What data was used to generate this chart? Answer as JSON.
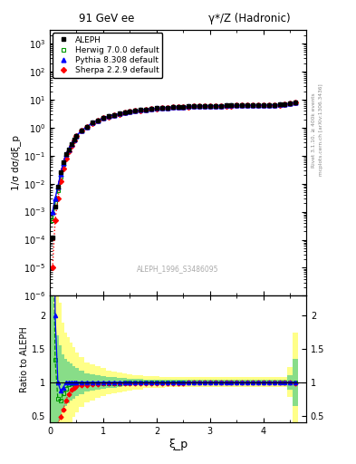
{
  "title_left": "91 GeV ee",
  "title_right": "γ*/Z (Hadronic)",
  "xlabel": "ξ_p",
  "ylabel_main": "1/σ dσ/dξ_p",
  "ylabel_ratio": "Ratio to ALEPH",
  "watermark": "ALEPH_1996_S3486095",
  "right_label": "Rivet 3.1.10, ≥ 400k events",
  "right_label2": "mcplots.cern.ch [arXiv:1306.3436]",
  "aleph_x": [
    0.05,
    0.1,
    0.15,
    0.2,
    0.25,
    0.3,
    0.35,
    0.4,
    0.45,
    0.5,
    0.6,
    0.7,
    0.8,
    0.9,
    1.0,
    1.1,
    1.2,
    1.3,
    1.4,
    1.5,
    1.6,
    1.7,
    1.8,
    1.9,
    2.0,
    2.1,
    2.2,
    2.3,
    2.4,
    2.5,
    2.6,
    2.7,
    2.8,
    2.9,
    3.0,
    3.1,
    3.2,
    3.3,
    3.4,
    3.5,
    3.6,
    3.7,
    3.8,
    3.9,
    4.0,
    4.1,
    4.2,
    4.3,
    4.4,
    4.5,
    4.6
  ],
  "aleph_y": [
    0.00012,
    0.0015,
    0.008,
    0.025,
    0.06,
    0.11,
    0.17,
    0.26,
    0.38,
    0.52,
    0.8,
    1.1,
    1.5,
    1.85,
    2.2,
    2.55,
    2.85,
    3.15,
    3.45,
    3.75,
    4.0,
    4.25,
    4.5,
    4.7,
    4.9,
    5.05,
    5.2,
    5.35,
    5.5,
    5.6,
    5.7,
    5.8,
    5.88,
    5.95,
    6.0,
    6.05,
    6.1,
    6.12,
    6.15,
    6.18,
    6.2,
    6.22,
    6.25,
    6.3,
    6.35,
    6.4,
    6.5,
    6.6,
    6.8,
    7.2,
    8.0
  ],
  "herwig_x": [
    0.05,
    0.1,
    0.15,
    0.2,
    0.25,
    0.3,
    0.35,
    0.4,
    0.45,
    0.5,
    0.6,
    0.7,
    0.8,
    0.9,
    1.0,
    1.1,
    1.2,
    1.3,
    1.4,
    1.5,
    1.6,
    1.7,
    1.8,
    1.9,
    2.0,
    2.1,
    2.2,
    2.3,
    2.4,
    2.5,
    2.6,
    2.7,
    2.8,
    2.9,
    3.0,
    3.1,
    3.2,
    3.3,
    3.4,
    3.5,
    3.6,
    3.7,
    3.8,
    3.9,
    4.0,
    4.1,
    4.2,
    4.3,
    4.4,
    4.5,
    4.6
  ],
  "herwig_y": [
    0.0005,
    0.002,
    0.006,
    0.018,
    0.05,
    0.1,
    0.165,
    0.255,
    0.37,
    0.51,
    0.79,
    1.08,
    1.48,
    1.82,
    2.18,
    2.52,
    2.82,
    3.12,
    3.42,
    3.72,
    3.97,
    4.22,
    4.47,
    4.67,
    4.87,
    5.02,
    5.17,
    5.32,
    5.47,
    5.57,
    5.67,
    5.77,
    5.85,
    5.92,
    5.97,
    6.02,
    6.07,
    6.09,
    6.12,
    6.15,
    6.17,
    6.19,
    6.22,
    6.27,
    6.32,
    6.37,
    6.47,
    6.57,
    6.77,
    7.17,
    8.0
  ],
  "pythia_x": [
    0.05,
    0.1,
    0.15,
    0.2,
    0.25,
    0.3,
    0.35,
    0.4,
    0.45,
    0.5,
    0.6,
    0.7,
    0.8,
    0.9,
    1.0,
    1.1,
    1.2,
    1.3,
    1.4,
    1.5,
    1.6,
    1.7,
    1.8,
    1.9,
    2.0,
    2.1,
    2.2,
    2.3,
    2.4,
    2.5,
    2.6,
    2.7,
    2.8,
    2.9,
    3.0,
    3.1,
    3.2,
    3.3,
    3.4,
    3.5,
    3.6,
    3.7,
    3.8,
    3.9,
    4.0,
    4.1,
    4.2,
    4.3,
    4.4,
    4.5,
    4.6
  ],
  "pythia_y": [
    0.001,
    0.003,
    0.008,
    0.022,
    0.055,
    0.11,
    0.17,
    0.26,
    0.38,
    0.52,
    0.8,
    1.1,
    1.5,
    1.85,
    2.2,
    2.55,
    2.85,
    3.15,
    3.45,
    3.75,
    4.0,
    4.25,
    4.5,
    4.7,
    4.9,
    5.05,
    5.2,
    5.35,
    5.5,
    5.6,
    5.7,
    5.8,
    5.88,
    5.95,
    6.0,
    6.05,
    6.1,
    6.12,
    6.15,
    6.18,
    6.2,
    6.22,
    6.25,
    6.3,
    6.35,
    6.4,
    6.5,
    6.6,
    6.8,
    7.2,
    8.0
  ],
  "sherpa_x": [
    0.05,
    0.1,
    0.15,
    0.2,
    0.25,
    0.3,
    0.35,
    0.4,
    0.45,
    0.5,
    0.6,
    0.7,
    0.8,
    0.9,
    1.0,
    1.1,
    1.2,
    1.3,
    1.4,
    1.5,
    1.6,
    1.7,
    1.8,
    1.9,
    2.0,
    2.1,
    2.2,
    2.3,
    2.4,
    2.5,
    2.6,
    2.7,
    2.8,
    2.9,
    3.0,
    3.1,
    3.2,
    3.3,
    3.4,
    3.5,
    3.6,
    3.7,
    3.8,
    3.9,
    4.0,
    4.1,
    4.2,
    4.3,
    4.4,
    4.5,
    4.6
  ],
  "sherpa_y": [
    1e-05,
    0.0005,
    0.003,
    0.012,
    0.035,
    0.08,
    0.14,
    0.23,
    0.35,
    0.49,
    0.77,
    1.06,
    1.46,
    1.8,
    2.16,
    2.5,
    2.8,
    3.1,
    3.4,
    3.7,
    3.95,
    4.2,
    4.45,
    4.65,
    4.85,
    5.0,
    5.15,
    5.3,
    5.45,
    5.55,
    5.65,
    5.75,
    5.83,
    5.9,
    5.95,
    6.0,
    6.05,
    6.07,
    6.1,
    6.13,
    6.15,
    6.17,
    6.2,
    6.25,
    6.3,
    6.35,
    6.45,
    6.55,
    6.75,
    7.15,
    7.9
  ],
  "xlim": [
    0.0,
    4.8
  ],
  "ylim_main": [
    1e-06,
    3000.0
  ],
  "ylim_ratio": [
    0.4,
    2.3
  ],
  "aleph_color": "black",
  "herwig_color": "#009900",
  "pythia_color": "blue",
  "sherpa_color": "red",
  "band_yellow": "#ffff88",
  "band_green": "#88dd88"
}
